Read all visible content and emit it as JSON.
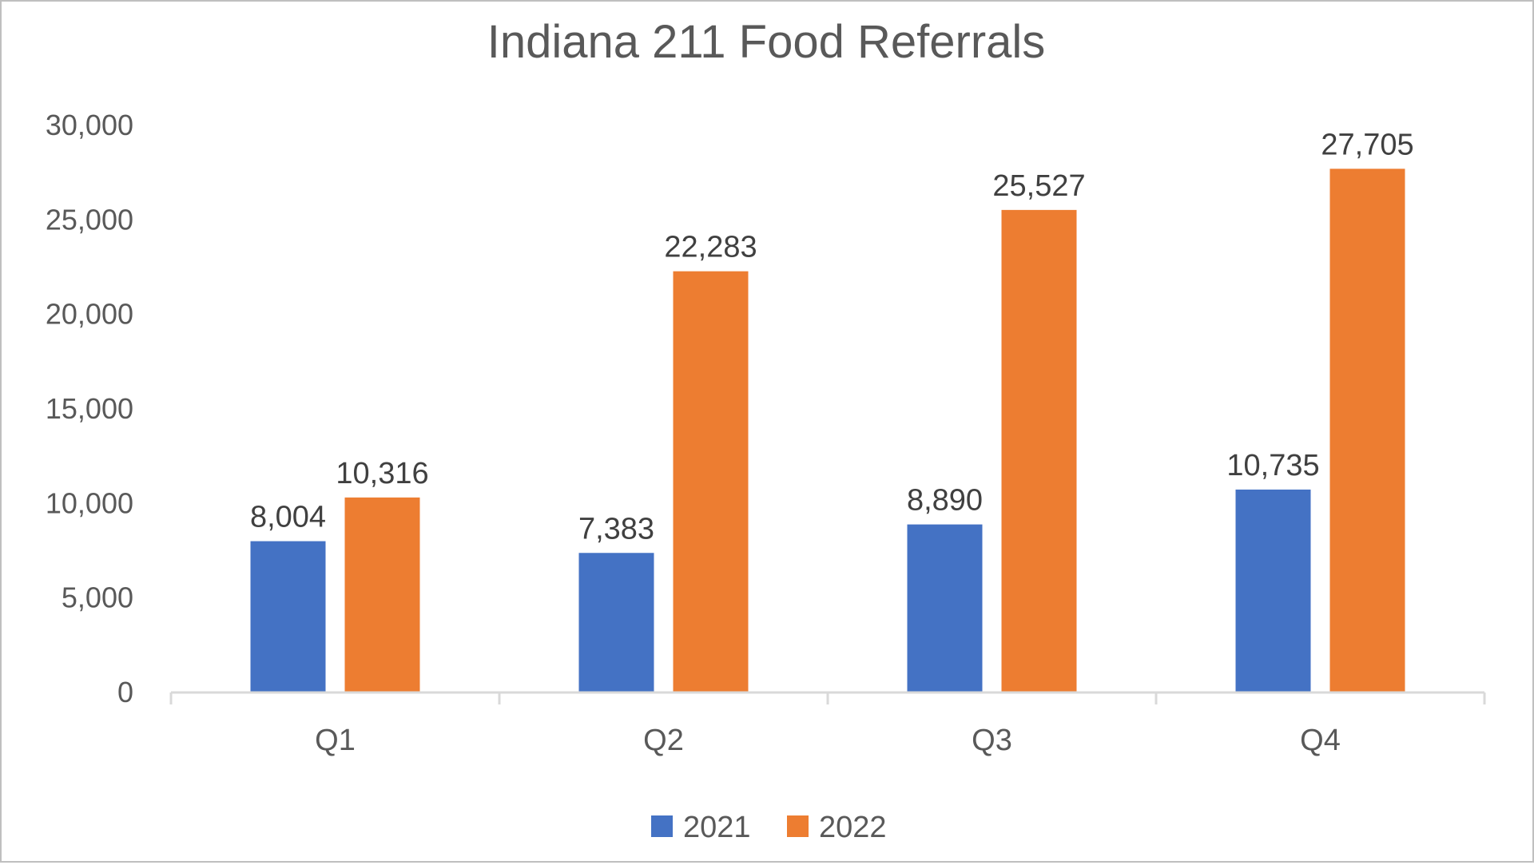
{
  "chart_data": {
    "type": "bar",
    "title": "Indiana 211 Food Referrals",
    "categories": [
      "Q1",
      "Q2",
      "Q3",
      "Q4"
    ],
    "series": [
      {
        "name": "2021",
        "values": [
          8004,
          7383,
          8890,
          10735
        ],
        "color": "#4472C4",
        "labels": [
          "8,004",
          "7,383",
          "8,890",
          "10,735"
        ]
      },
      {
        "name": "2022",
        "values": [
          10316,
          22283,
          25527,
          27705
        ],
        "color": "#ED7D31",
        "labels": [
          "10,316",
          "22,283",
          "25,527",
          "27,705"
        ]
      }
    ],
    "ylim": [
      0,
      30000
    ],
    "yticks": [
      "0",
      "5,000",
      "10,000",
      "15,000",
      "20,000",
      "25,000",
      "30,000"
    ],
    "grid": false,
    "legend": "bottom",
    "xlabel": "",
    "ylabel": ""
  }
}
